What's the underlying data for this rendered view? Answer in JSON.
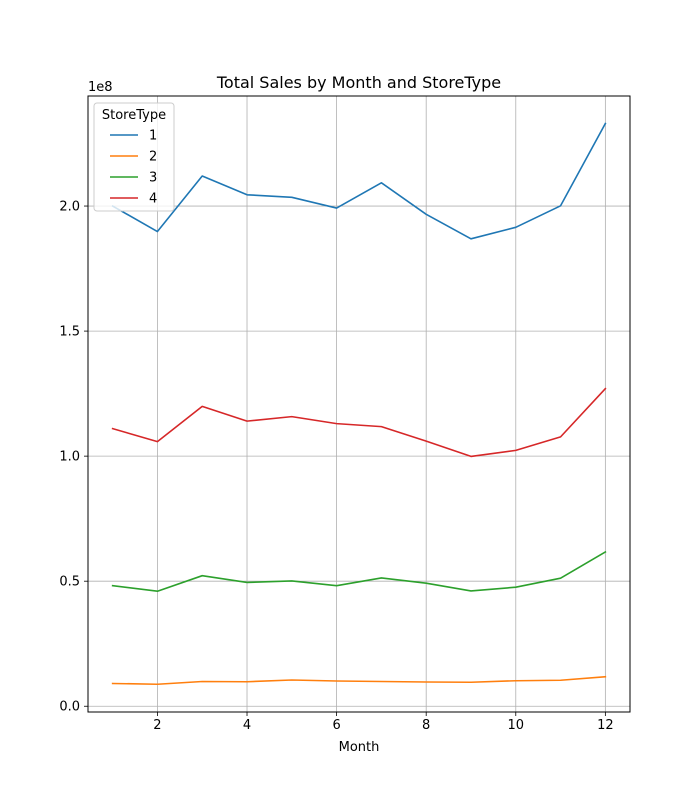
{
  "chart_data": {
    "type": "line",
    "title": "Total Sales by Month and StoreType",
    "xlabel": "Month",
    "ylabel": "",
    "y_offset_text": "1e8",
    "x": [
      1,
      2,
      3,
      4,
      5,
      6,
      7,
      8,
      9,
      10,
      11,
      12
    ],
    "xticks": [
      2,
      4,
      6,
      8,
      10,
      12
    ],
    "xtick_labels": [
      "2",
      "4",
      "6",
      "8",
      "10",
      "12"
    ],
    "yticks": [
      0,
      50000000,
      100000000,
      150000000,
      200000000
    ],
    "ytick_labels": [
      "0.0",
      "0.5",
      "1.0",
      "1.5",
      "2.0"
    ],
    "xlim": [
      0.45,
      12.55
    ],
    "ylim": [
      -2300000,
      244000000
    ],
    "grid": true,
    "legend": {
      "title": "StoreType",
      "placement": "top-left"
    },
    "series": [
      {
        "name": "1",
        "color": "#1f77b4",
        "values": [
          200000000,
          189800000,
          212000000,
          204500000,
          203500000,
          199200000,
          209300000,
          196700000,
          186900000,
          191500000,
          200100000,
          233000000
        ]
      },
      {
        "name": "2",
        "color": "#ff7f0e",
        "values": [
          9100000,
          8800000,
          9900000,
          9800000,
          10500000,
          10100000,
          9900000,
          9700000,
          9600000,
          10200000,
          10400000,
          11800000
        ]
      },
      {
        "name": "3",
        "color": "#2ca02c",
        "values": [
          48200000,
          46000000,
          52200000,
          49500000,
          50100000,
          48200000,
          51300000,
          49200000,
          46100000,
          47600000,
          51200000,
          61700000
        ]
      },
      {
        "name": "4",
        "color": "#d62728",
        "values": [
          111000000,
          105800000,
          119900000,
          114000000,
          115800000,
          113000000,
          111800000,
          106000000,
          99900000,
          102300000,
          107700000,
          127000000
        ]
      }
    ]
  }
}
